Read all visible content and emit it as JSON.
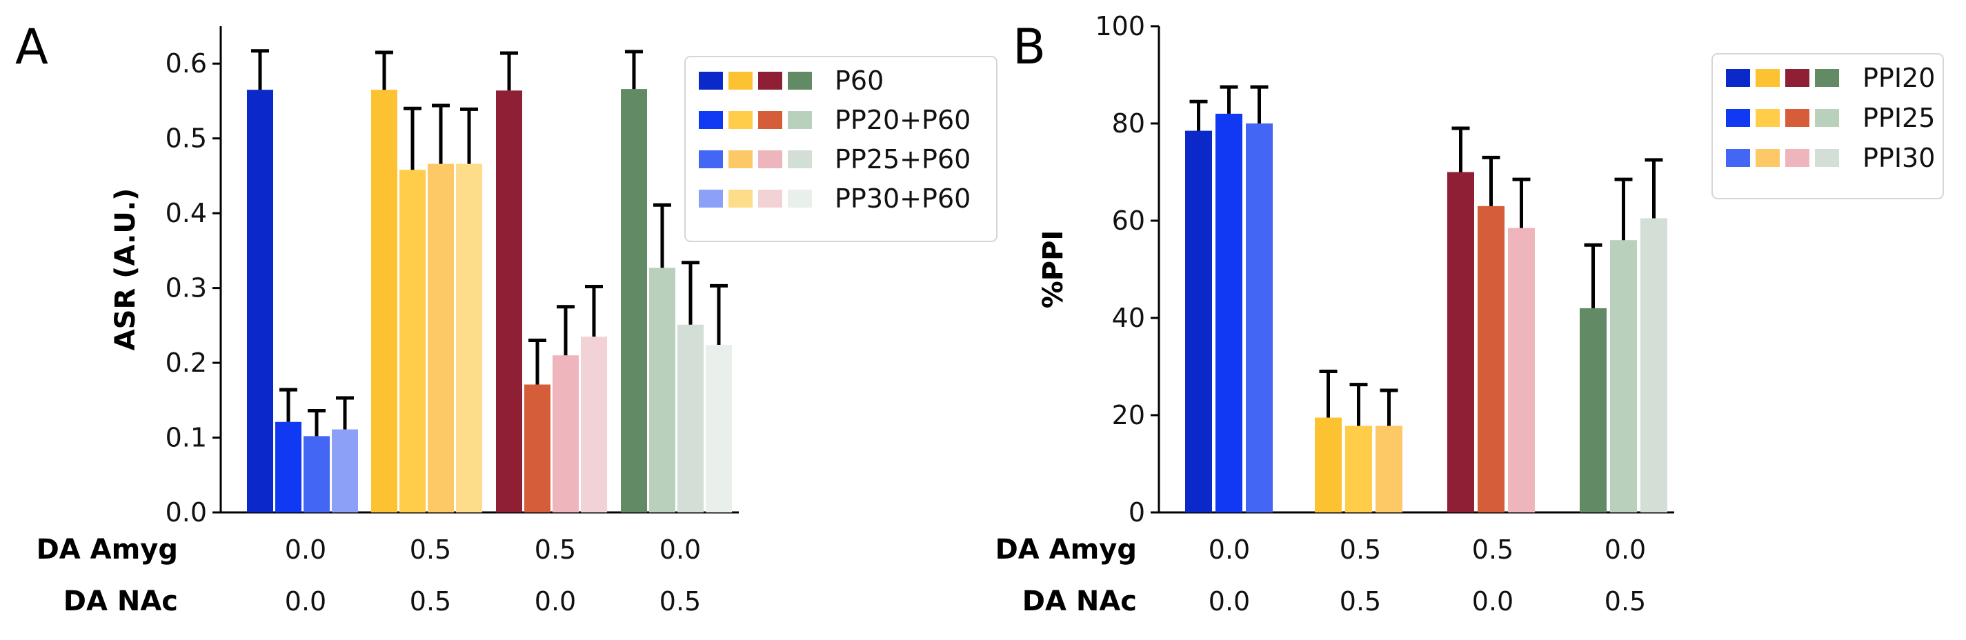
{
  "panels": [
    {
      "id": "A",
      "letter": "A"
    },
    {
      "id": "B",
      "letter": "B"
    }
  ],
  "chart_data": [
    {
      "panel": "A",
      "type": "bar",
      "ylabel": "ASR (A.U.)",
      "ylim": [
        0,
        0.65
      ],
      "yticks": [
        "0.0",
        "0.1",
        "0.2",
        "0.3",
        "0.4",
        "0.5",
        "0.6"
      ],
      "yticks_values": [
        0,
        0.1,
        0.2,
        0.3,
        0.4,
        0.5,
        0.6
      ],
      "row_labels": [
        "DA Amyg",
        "DA NAc"
      ],
      "groups": [
        {
          "da_amyg": "0.0",
          "da_nac": "0.0",
          "values": [
            0.565,
            0.121,
            0.102,
            0.111
          ],
          "errors": [
            0.052,
            0.043,
            0.034,
            0.042
          ],
          "colors": [
            "#0a29c8",
            "#1138f2",
            "#4466f5",
            "#8ca0f8"
          ]
        },
        {
          "da_amyg": "0.5",
          "da_nac": "0.5",
          "values": [
            0.565,
            0.458,
            0.466,
            0.466
          ],
          "errors": [
            0.05,
            0.082,
            0.078,
            0.073
          ],
          "colors": [
            "#fdc231",
            "#ffcd4a",
            "#fdc966",
            "#fedd8a"
          ]
        },
        {
          "da_amyg": "0.5",
          "da_nac": "0.0",
          "values": [
            0.564,
            0.171,
            0.21,
            0.235
          ],
          "errors": [
            0.05,
            0.059,
            0.065,
            0.067
          ],
          "colors": [
            "#8e1f35",
            "#d65d39",
            "#eeb5bc",
            "#f3d2d6"
          ]
        },
        {
          "da_amyg": "0.0",
          "da_nac": "0.5",
          "values": [
            0.566,
            0.327,
            0.251,
            0.224
          ],
          "errors": [
            0.05,
            0.084,
            0.083,
            0.079
          ],
          "colors": [
            "#618a65",
            "#b9d0bc",
            "#d3ded6",
            "#e9efea"
          ]
        }
      ],
      "legend": {
        "placement": "upper-right",
        "entries": [
          {
            "label": "P60",
            "colors": [
              "#0a29c8",
              "#fdc231",
              "#8e1f35",
              "#618a65"
            ]
          },
          {
            "label": "PP20+P60",
            "colors": [
              "#1138f2",
              "#ffcd4a",
              "#d65d39",
              "#b9d0bc"
            ]
          },
          {
            "label": "PP25+P60",
            "colors": [
              "#4466f5",
              "#fdc966",
              "#eeb5bc",
              "#d3ded6"
            ]
          },
          {
            "label": "PP30+P60",
            "colors": [
              "#8ca0f8",
              "#fedd8a",
              "#f3d2d6",
              "#e9efea"
            ]
          }
        ]
      }
    },
    {
      "panel": "B",
      "type": "bar",
      "ylabel": "%PPI",
      "ylim": [
        0,
        100
      ],
      "yticks": [
        "0",
        "20",
        "40",
        "60",
        "80",
        "100"
      ],
      "yticks_values": [
        0,
        20,
        40,
        60,
        80,
        100
      ],
      "row_labels": [
        "DA Amyg",
        "DA NAc"
      ],
      "groups": [
        {
          "da_amyg": "0.0",
          "da_nac": "0.0",
          "values": [
            78.5,
            82,
            80
          ],
          "errors": [
            6,
            5.5,
            7.5
          ],
          "colors": [
            "#0a29c8",
            "#1138f2",
            "#4466f5"
          ]
        },
        {
          "da_amyg": "0.5",
          "da_nac": "0.5",
          "values": [
            19.5,
            17.8,
            17.8
          ],
          "errors": [
            9.5,
            8.5,
            7.3
          ],
          "colors": [
            "#fdc231",
            "#ffcd4a",
            "#fdc966"
          ]
        },
        {
          "da_amyg": "0.5",
          "da_nac": "0.0",
          "values": [
            70,
            63,
            58.5
          ],
          "errors": [
            9,
            10,
            10
          ],
          "colors": [
            "#8e1f35",
            "#d65d39",
            "#eeb5bc"
          ]
        },
        {
          "da_amyg": "0.0",
          "da_nac": "0.5",
          "values": [
            42,
            56,
            60.5
          ],
          "errors": [
            13,
            12.5,
            12
          ],
          "colors": [
            "#618a65",
            "#b9d0bc",
            "#d3ded6"
          ]
        }
      ],
      "legend": {
        "placement": "upper-right",
        "entries": [
          {
            "label": "PPI20",
            "colors": [
              "#0a29c8",
              "#fdc231",
              "#8e1f35",
              "#618a65"
            ]
          },
          {
            "label": "PPI25",
            "colors": [
              "#1138f2",
              "#ffcd4a",
              "#d65d39",
              "#b9d0bc"
            ]
          },
          {
            "label": "PPI30",
            "colors": [
              "#4466f5",
              "#fdc966",
              "#eeb5bc",
              "#d3ded6"
            ]
          }
        ]
      }
    }
  ]
}
